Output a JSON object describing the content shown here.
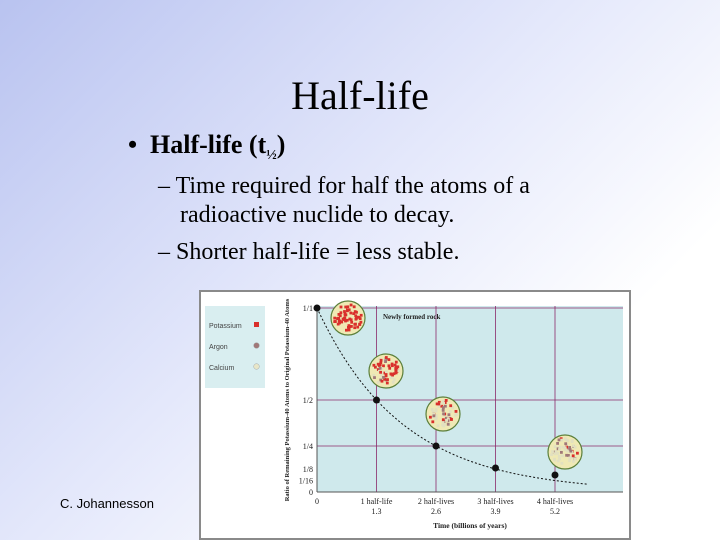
{
  "slide": {
    "title": "Half-life",
    "bullet": "Half-life (t",
    "bullet_sub": "½",
    "bullet_end": ")",
    "sub1_line1": "– Time required for half the atoms of a",
    "sub1_line2": "radioactive nuclide to decay.",
    "sub2": "– Shorter half-life = less stable.",
    "footer": "C. Johannesson"
  },
  "chart_data": {
    "type": "line",
    "ylabel": "Ratio of Remaining Potassium-40 Atoms to Original Potassium-40 Atoms",
    "xlabel": "Time (billions of years)",
    "y_ticks": [
      "1/1",
      "1/2",
      "1/4",
      "1/8",
      "1/16",
      "0"
    ],
    "x_ticks": [
      {
        "top": "0",
        "bottom": ""
      },
      {
        "top": "1 half-life",
        "bottom": "1.3"
      },
      {
        "top": "2 half-lives",
        "bottom": "2.6"
      },
      {
        "top": "3 half-lives",
        "bottom": "3.9"
      },
      {
        "top": "4 half-lives",
        "bottom": "5.2"
      }
    ],
    "x": [
      0,
      1.3,
      2.6,
      3.9,
      5.2
    ],
    "y": [
      1,
      0.5,
      0.25,
      0.125,
      0.0625
    ],
    "annotation": "Newly formed rock",
    "legend": [
      {
        "name": "Potassium",
        "color": "#d9302c"
      },
      {
        "name": "Argon",
        "color": "#a07878"
      },
      {
        "name": "Calcium",
        "color": "#e8e6c8"
      }
    ],
    "plot_bg": "#cfe9ec",
    "grid_color": "#8b2a6a"
  }
}
